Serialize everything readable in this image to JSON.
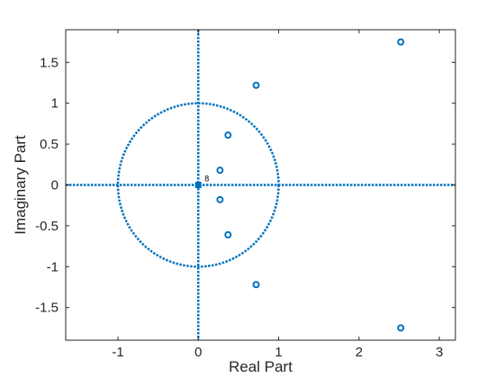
{
  "chart_data": {
    "type": "scatter",
    "title": "",
    "xlabel": "Real Part",
    "ylabel": "Imaginary Part",
    "xlim": [
      -1.65,
      3.2
    ],
    "ylim": [
      -1.9,
      1.9
    ],
    "xticks": [
      -1,
      0,
      1,
      2,
      3
    ],
    "xtick_labels": [
      "-1",
      "0",
      "1",
      "2",
      "3"
    ],
    "yticks": [
      -1.5,
      -1,
      -0.5,
      0,
      0.5,
      1,
      1.5
    ],
    "ytick_labels": [
      "-1.5",
      "-1",
      "-0.5",
      "0",
      "0.5",
      "1",
      "1.5"
    ],
    "grid": false,
    "legend": "none",
    "marker_color": "#0072BD",
    "zeros": [
      {
        "x": 2.52,
        "y": 1.75
      },
      {
        "x": 2.52,
        "y": -1.75
      },
      {
        "x": 0.72,
        "y": 1.22
      },
      {
        "x": 0.72,
        "y": -1.22
      },
      {
        "x": 0.37,
        "y": 0.61
      },
      {
        "x": 0.37,
        "y": -0.61
      },
      {
        "x": 0.27,
        "y": 0.18
      },
      {
        "x": 0.27,
        "y": -0.18
      }
    ],
    "poles": [
      {
        "x": 0,
        "y": 0,
        "multiplicity_label": "8"
      }
    ],
    "unit_circle": true,
    "reference_axes": true
  }
}
